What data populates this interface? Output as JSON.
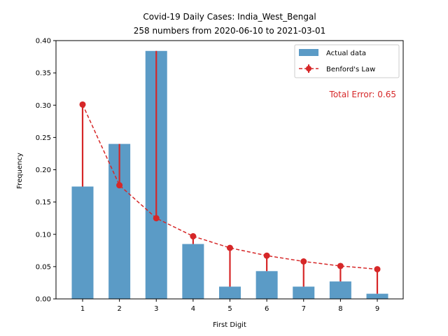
{
  "chart_data": {
    "type": "bar",
    "title": "Covid-19 Daily Cases: India_West_Bengal",
    "subtitle": "258 numbers from 2020-06-10 to 2021-03-01",
    "xlabel": "First Digit",
    "ylabel": "Frequency",
    "categories": [
      "1",
      "2",
      "3",
      "4",
      "5",
      "6",
      "7",
      "8",
      "9"
    ],
    "ylim": [
      0,
      0.4
    ],
    "yticks": [
      "0.00",
      "0.05",
      "0.10",
      "0.15",
      "0.20",
      "0.25",
      "0.30",
      "0.35",
      "0.40"
    ],
    "grid": false,
    "legend_position": "top-right",
    "series": [
      {
        "name": "Actual data",
        "kind": "bar",
        "color": "#5b9bc6",
        "values": [
          0.174,
          0.24,
          0.384,
          0.085,
          0.019,
          0.043,
          0.019,
          0.027,
          0.008
        ]
      },
      {
        "name": "Benford's Law",
        "kind": "line-errorbar",
        "color": "#d62728",
        "values": [
          0.301,
          0.176,
          0.125,
          0.097,
          0.079,
          0.067,
          0.058,
          0.051,
          0.046
        ]
      }
    ],
    "annotation": {
      "text": "Total Error: 0.65",
      "color": "#d62728"
    }
  }
}
